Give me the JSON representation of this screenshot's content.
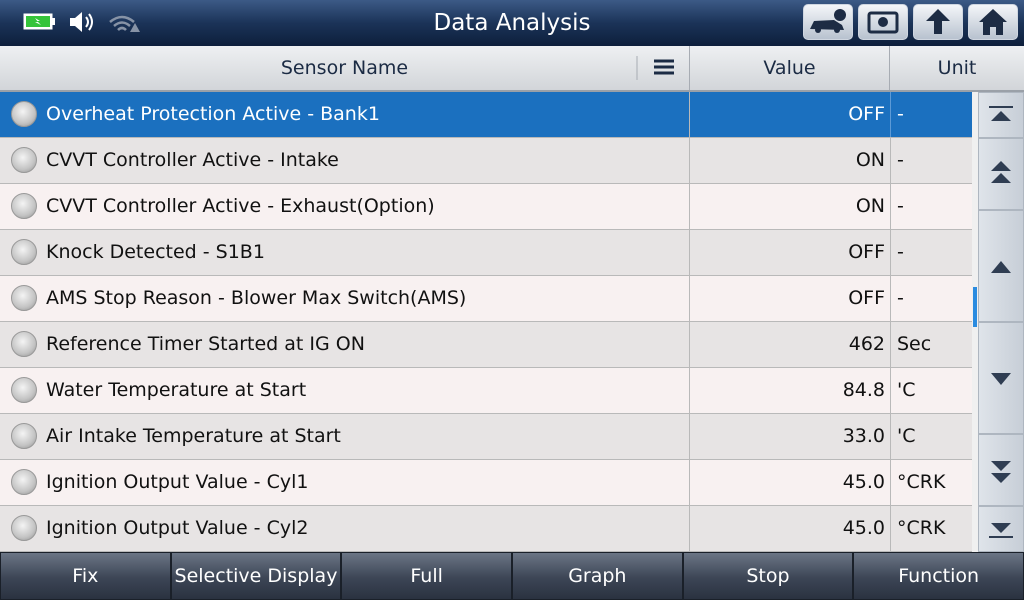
{
  "header": {
    "title": "Data Analysis"
  },
  "table": {
    "columns": [
      "Sensor Name",
      "Value",
      "Unit"
    ],
    "rows": [
      {
        "name": "Overheat Protection Active - Bank1",
        "value": "OFF",
        "unit": "-"
      },
      {
        "name": "CVVT Controller Active - Intake",
        "value": "ON",
        "unit": "-"
      },
      {
        "name": "CVVT Controller Active - Exhaust(Option)",
        "value": "ON",
        "unit": "-"
      },
      {
        "name": "Knock Detected - S1B1",
        "value": "OFF",
        "unit": "-"
      },
      {
        "name": "AMS Stop Reason - Blower Max Switch(AMS)",
        "value": "OFF",
        "unit": "-"
      },
      {
        "name": "Reference Timer Started at IG ON",
        "value": "462",
        "unit": "Sec"
      },
      {
        "name": "Water Temperature at Start",
        "value": "84.8",
        "unit": "'C"
      },
      {
        "name": "Air Intake Temperature at Start",
        "value": "33.0",
        "unit": "'C"
      },
      {
        "name": "Ignition Output Value - Cyl1",
        "value": "45.0",
        "unit": "°CRK"
      },
      {
        "name": "Ignition Output Value - Cyl2",
        "value": "45.0",
        "unit": "°CRK"
      }
    ]
  },
  "buttons": [
    "Fix",
    "Selective Display",
    "Full",
    "Graph",
    "Stop",
    "Function"
  ]
}
